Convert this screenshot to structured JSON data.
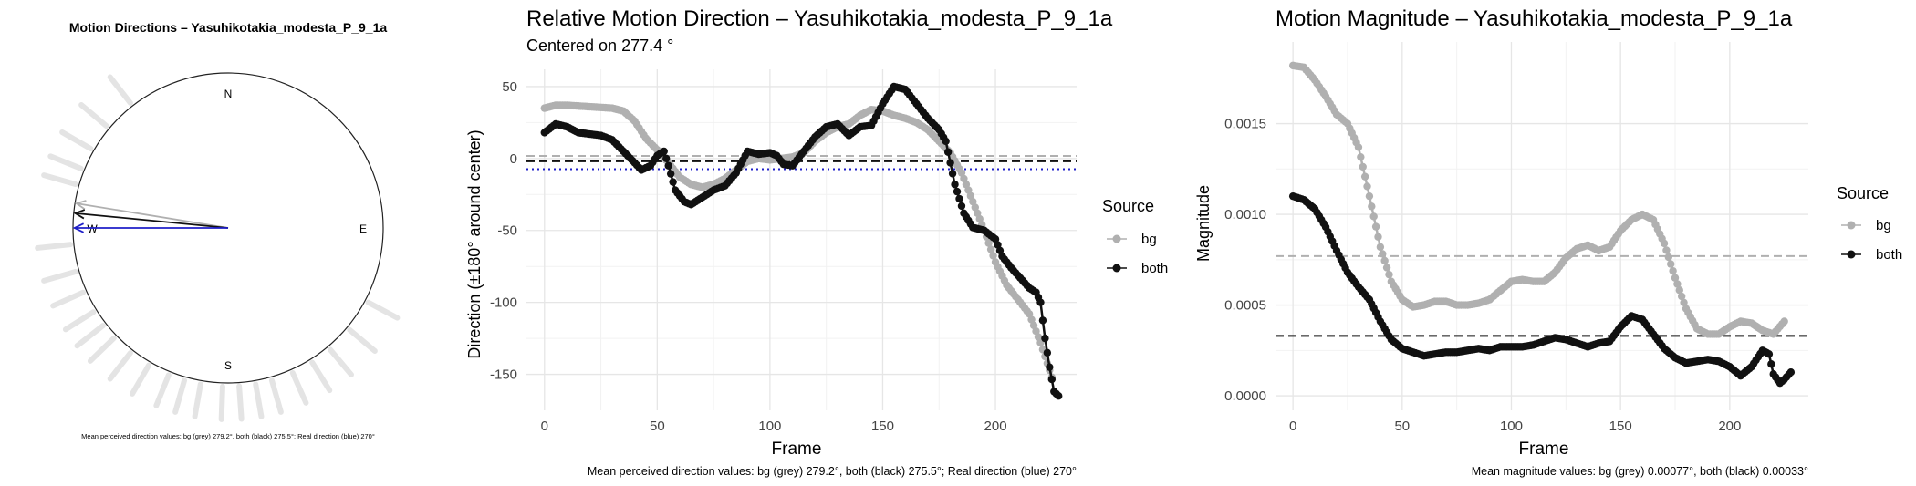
{
  "colors": {
    "bg": "#b0b0b0",
    "both": "#111111",
    "real": "#1f1fc8",
    "grid": "#e6e6e6",
    "ray": "#e4e4e4"
  },
  "chart_data": [
    {
      "type": "polar",
      "title": "Motion Directions – Yasuhikotakia_modesta_P_9_1a",
      "compass": {
        "n": "N",
        "e": "E",
        "s": "S",
        "w": "W"
      },
      "arrows": [
        {
          "name": "bg",
          "angle_deg": 279.2,
          "length": 1.0
        },
        {
          "name": "both",
          "angle_deg": 275.5,
          "length": 1.0
        },
        {
          "name": "real",
          "angle_deg": 270,
          "length": 1.0
        }
      ],
      "ray_angles_deg": [
        322,
        310,
        300,
        292,
        286,
        264,
        254,
        246,
        238,
        232,
        226,
        218,
        210,
        202,
        196,
        190,
        182,
        176,
        170,
        164,
        156,
        148,
        140,
        130,
        118
      ],
      "caption": "Mean perceived direction values: bg (grey) 279.2°, both (black) 275.5°; Real direction (blue) 270°"
    },
    {
      "type": "scatter",
      "title": "Relative Motion Direction – Yasuhikotakia_modesta_P_9_1a",
      "subtitle": "Centered on  277.4 °",
      "xlabel": "Frame",
      "ylabel": "Direction (±180° around center)",
      "xlim": [
        -8,
        236
      ],
      "ylim": [
        -175,
        62
      ],
      "xticks": [
        0,
        50,
        100,
        150,
        200
      ],
      "yticks": [
        50,
        0,
        -50,
        -100,
        -150
      ],
      "hlines": [
        {
          "name": "bg",
          "y": 1.8
        },
        {
          "name": "both",
          "y": -1.9
        },
        {
          "name": "real",
          "y": -7.4
        }
      ],
      "legend": {
        "title": "Source",
        "items": [
          "bg",
          "both"
        ],
        "position": "right"
      },
      "series": [
        {
          "name": "bg",
          "points": [
            [
              0,
              35
            ],
            [
              5,
              37
            ],
            [
              10,
              37
            ],
            [
              20,
              36
            ],
            [
              30,
              35
            ],
            [
              35,
              33
            ],
            [
              40,
              26
            ],
            [
              45,
              14
            ],
            [
              50,
              6
            ],
            [
              55,
              -3
            ],
            [
              60,
              -13
            ],
            [
              65,
              -18
            ],
            [
              70,
              -20
            ],
            [
              75,
              -18
            ],
            [
              80,
              -14
            ],
            [
              85,
              -8
            ],
            [
              90,
              -2
            ],
            [
              95,
              0
            ],
            [
              100,
              -1
            ],
            [
              105,
              0
            ],
            [
              110,
              1
            ],
            [
              115,
              4
            ],
            [
              120,
              12
            ],
            [
              125,
              18
            ],
            [
              130,
              22
            ],
            [
              135,
              24
            ],
            [
              140,
              30
            ],
            [
              145,
              34
            ],
            [
              150,
              33
            ],
            [
              155,
              30
            ],
            [
              160,
              28
            ],
            [
              165,
              25
            ],
            [
              170,
              20
            ],
            [
              175,
              12
            ],
            [
              180,
              4
            ],
            [
              185,
              -10
            ],
            [
              190,
              -30
            ],
            [
              195,
              -50
            ],
            [
              200,
              -72
            ],
            [
              205,
              -88
            ],
            [
              210,
              -98
            ],
            [
              215,
              -108
            ],
            [
              220,
              -128
            ],
            [
              225,
              -152
            ]
          ]
        },
        {
          "name": "both",
          "points": [
            [
              0,
              18
            ],
            [
              5,
              24
            ],
            [
              10,
              22
            ],
            [
              15,
              18
            ],
            [
              20,
              17
            ],
            [
              25,
              16
            ],
            [
              30,
              13
            ],
            [
              35,
              5
            ],
            [
              40,
              -3
            ],
            [
              43,
              -8
            ],
            [
              47,
              -5
            ],
            [
              50,
              2
            ],
            [
              53,
              5
            ],
            [
              55,
              -5
            ],
            [
              58,
              -22
            ],
            [
              62,
              -30
            ],
            [
              65,
              -32
            ],
            [
              70,
              -27
            ],
            [
              75,
              -22
            ],
            [
              80,
              -19
            ],
            [
              85,
              -10
            ],
            [
              90,
              5
            ],
            [
              95,
              3
            ],
            [
              100,
              4
            ],
            [
              103,
              2
            ],
            [
              106,
              -4
            ],
            [
              110,
              -5
            ],
            [
              115,
              5
            ],
            [
              120,
              15
            ],
            [
              125,
              22
            ],
            [
              130,
              24
            ],
            [
              135,
              16
            ],
            [
              140,
              22
            ],
            [
              145,
              23
            ],
            [
              150,
              38
            ],
            [
              155,
              50
            ],
            [
              160,
              48
            ],
            [
              165,
              38
            ],
            [
              170,
              28
            ],
            [
              175,
              20
            ],
            [
              178,
              12
            ],
            [
              182,
              -18
            ],
            [
              186,
              -38
            ],
            [
              190,
              -48
            ],
            [
              195,
              -50
            ],
            [
              200,
              -56
            ],
            [
              203,
              -68
            ],
            [
              207,
              -76
            ],
            [
              211,
              -83
            ],
            [
              215,
              -90
            ],
            [
              218,
              -93
            ],
            [
              220,
              -100
            ],
            [
              222,
              -125
            ],
            [
              224,
              -145
            ],
            [
              226,
              -162
            ],
            [
              228,
              -165
            ]
          ]
        }
      ],
      "caption": "Mean perceived direction values: bg (grey) 279.2°, both (black) 275.5°; Real direction (blue) 270°"
    },
    {
      "type": "scatter",
      "title": "Motion Magnitude – Yasuhikotakia_modesta_P_9_1a",
      "xlabel": "Frame",
      "ylabel": "Magnitude",
      "xlim": [
        -8,
        236
      ],
      "ylim": [
        -8e-05,
        0.00195
      ],
      "xticks": [
        0,
        50,
        100,
        150,
        200
      ],
      "yticks": [
        "0.0000",
        "0.0005",
        "0.0010",
        "0.0015"
      ],
      "hlines": [
        {
          "name": "bg",
          "y": 0.00077
        },
        {
          "name": "both",
          "y": 0.00033
        }
      ],
      "legend": {
        "title": "Source",
        "items": [
          "bg",
          "both"
        ],
        "position": "right"
      },
      "series": [
        {
          "name": "bg",
          "points": [
            [
              0,
              0.00182
            ],
            [
              5,
              0.00181
            ],
            [
              10,
              0.00174
            ],
            [
              15,
              0.00165
            ],
            [
              20,
              0.00155
            ],
            [
              25,
              0.0015
            ],
            [
              30,
              0.00137
            ],
            [
              35,
              0.0011
            ],
            [
              40,
              0.00082
            ],
            [
              45,
              0.00063
            ],
            [
              50,
              0.00053
            ],
            [
              55,
              0.00049
            ],
            [
              60,
              0.0005
            ],
            [
              65,
              0.00052
            ],
            [
              70,
              0.00052
            ],
            [
              75,
              0.0005
            ],
            [
              80,
              0.0005
            ],
            [
              85,
              0.00051
            ],
            [
              90,
              0.00053
            ],
            [
              95,
              0.00058
            ],
            [
              100,
              0.00063
            ],
            [
              105,
              0.00064
            ],
            [
              110,
              0.00063
            ],
            [
              115,
              0.00063
            ],
            [
              120,
              0.00068
            ],
            [
              125,
              0.00076
            ],
            [
              130,
              0.00081
            ],
            [
              135,
              0.00083
            ],
            [
              140,
              0.0008
            ],
            [
              145,
              0.00082
            ],
            [
              150,
              0.00091
            ],
            [
              155,
              0.00097
            ],
            [
              160,
              0.001
            ],
            [
              165,
              0.00097
            ],
            [
              170,
              0.00084
            ],
            [
              175,
              0.00065
            ],
            [
              180,
              0.00048
            ],
            [
              185,
              0.00037
            ],
            [
              190,
              0.00034
            ],
            [
              195,
              0.00034
            ],
            [
              200,
              0.00038
            ],
            [
              205,
              0.00041
            ],
            [
              210,
              0.0004
            ],
            [
              215,
              0.00036
            ],
            [
              220,
              0.00034
            ],
            [
              225,
              0.00041
            ]
          ]
        },
        {
          "name": "both",
          "points": [
            [
              0,
              0.0011
            ],
            [
              5,
              0.00108
            ],
            [
              10,
              0.00103
            ],
            [
              15,
              0.00093
            ],
            [
              20,
              0.0008
            ],
            [
              25,
              0.00068
            ],
            [
              30,
              0.0006
            ],
            [
              35,
              0.00053
            ],
            [
              40,
              0.00041
            ],
            [
              45,
              0.00031
            ],
            [
              50,
              0.00026
            ],
            [
              55,
              0.00024
            ],
            [
              60,
              0.00022
            ],
            [
              65,
              0.00023
            ],
            [
              70,
              0.00024
            ],
            [
              75,
              0.00024
            ],
            [
              80,
              0.00025
            ],
            [
              85,
              0.00026
            ],
            [
              90,
              0.00025
            ],
            [
              95,
              0.00027
            ],
            [
              100,
              0.00027
            ],
            [
              105,
              0.00027
            ],
            [
              110,
              0.00028
            ],
            [
              115,
              0.0003
            ],
            [
              120,
              0.00032
            ],
            [
              125,
              0.00031
            ],
            [
              130,
              0.00029
            ],
            [
              135,
              0.00027
            ],
            [
              140,
              0.00029
            ],
            [
              145,
              0.0003
            ],
            [
              150,
              0.00038
            ],
            [
              155,
              0.00044
            ],
            [
              160,
              0.00042
            ],
            [
              165,
              0.00034
            ],
            [
              170,
              0.00026
            ],
            [
              175,
              0.00021
            ],
            [
              180,
              0.00018
            ],
            [
              185,
              0.00019
            ],
            [
              190,
              0.0002
            ],
            [
              195,
              0.00019
            ],
            [
              200,
              0.00016
            ],
            [
              205,
              0.00011
            ],
            [
              210,
              0.00016
            ],
            [
              215,
              0.00025
            ],
            [
              218,
              0.00023
            ],
            [
              220,
              0.00012
            ],
            [
              223,
              7e-05
            ],
            [
              225,
              9e-05
            ],
            [
              228,
              0.00013
            ]
          ]
        }
      ],
      "caption": "Mean magnitude values: bg (grey) 0.00077°, both (black) 0.00033°"
    }
  ]
}
